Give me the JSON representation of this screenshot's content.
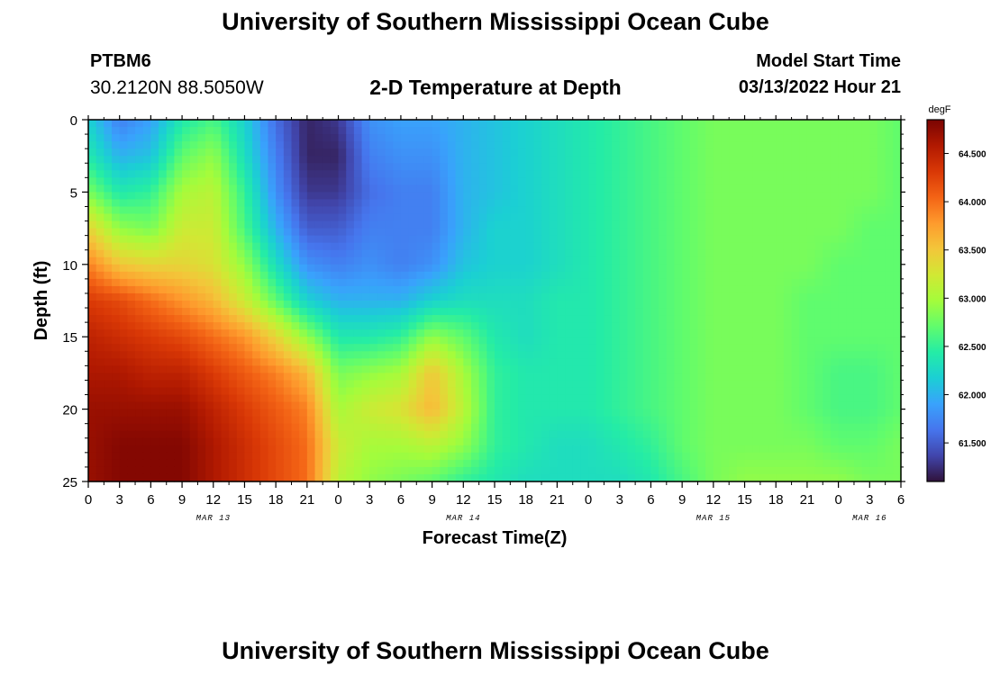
{
  "header": {
    "title": "University of Southern Mississippi Ocean Cube",
    "station_id": "PTBM6",
    "coordinates": "30.2120N  88.5050W",
    "subtitle": "2-D Temperature at Depth",
    "model_label": "Model Start Time",
    "model_time": "03/13/2022 Hour 21"
  },
  "footer": {
    "title": "University of Southern Mississippi Ocean Cube"
  },
  "chart_data": {
    "type": "heatmap",
    "title": "2-D Temperature at Depth",
    "xlabel": "Forecast Time(Z)",
    "ylabel": "Depth (ft)",
    "x_unit": "hours from MAR 13 00Z",
    "xlim": [
      0,
      78
    ],
    "ylim": [
      0,
      25
    ],
    "y_inverted": true,
    "x_tick_labels": [
      "0",
      "3",
      "6",
      "9",
      "12",
      "15",
      "18",
      "21",
      "0",
      "3",
      "6",
      "9",
      "12",
      "15",
      "18",
      "21",
      "0",
      "3",
      "6",
      "9",
      "12",
      "15",
      "18",
      "21",
      "0",
      "3",
      "6"
    ],
    "y_tick_labels": [
      "0",
      "5",
      "10",
      "15",
      "20",
      "25"
    ],
    "date_labels": [
      {
        "text": "MAR 13",
        "hour": 12
      },
      {
        "text": "MAR 14",
        "hour": 36
      },
      {
        "text": "MAR 15",
        "hour": 60
      },
      {
        "text": "MAR 16",
        "hour": 75
      }
    ],
    "colorbar": {
      "unit": "degF",
      "min": 61.1,
      "max": 64.85,
      "tick_labels": [
        "64.500",
        "64.000",
        "63.500",
        "63.000",
        "62.500",
        "62.000",
        "61.500"
      ],
      "colors": [
        "#30123b",
        "#4145ab",
        "#4675ed",
        "#39a2fc",
        "#1bcfd4",
        "#24eca6",
        "#61fc6c",
        "#a4fc3b",
        "#d1e834",
        "#f3c63a",
        "#fe9b2d",
        "#f36315",
        "#d93806",
        "#b11901",
        "#7a0402"
      ]
    },
    "depths_ft": [
      0,
      2.5,
      5,
      7.5,
      10,
      12.5,
      15,
      17.5,
      20,
      22.5,
      25
    ],
    "times_hr": [
      0,
      3,
      6,
      9,
      12,
      15,
      18,
      21,
      24,
      27,
      30,
      33,
      36,
      39,
      42,
      45,
      48,
      51,
      54,
      57,
      60,
      63,
      66,
      69,
      72,
      75,
      78
    ],
    "values_degF": [
      [
        62.2,
        61.7,
        61.9,
        62.4,
        62.6,
        62.2,
        61.6,
        61.2,
        61.3,
        61.8,
        61.9,
        61.9,
        62.0,
        62.1,
        62.2,
        62.3,
        62.4,
        62.5,
        62.6,
        62.7,
        62.8,
        62.8,
        62.8,
        62.8,
        62.8,
        62.8,
        62.7
      ],
      [
        62.4,
        62.0,
        62.1,
        62.7,
        62.9,
        62.3,
        61.7,
        61.2,
        61.2,
        61.7,
        61.8,
        61.8,
        62.0,
        62.1,
        62.2,
        62.3,
        62.4,
        62.5,
        62.6,
        62.7,
        62.8,
        62.8,
        62.8,
        62.8,
        62.8,
        62.8,
        62.7
      ],
      [
        62.8,
        62.4,
        62.5,
        63.0,
        63.1,
        62.5,
        61.8,
        61.3,
        61.3,
        61.6,
        61.7,
        61.7,
        62.0,
        62.1,
        62.2,
        62.3,
        62.4,
        62.5,
        62.6,
        62.7,
        62.8,
        62.8,
        62.8,
        62.8,
        62.8,
        62.8,
        62.7
      ],
      [
        63.4,
        62.9,
        62.8,
        63.2,
        63.2,
        62.6,
        62.0,
        61.5,
        61.5,
        61.7,
        61.7,
        61.7,
        62.0,
        62.2,
        62.2,
        62.3,
        62.4,
        62.5,
        62.6,
        62.7,
        62.8,
        62.8,
        62.8,
        62.8,
        62.8,
        62.7,
        62.7
      ],
      [
        63.9,
        63.5,
        63.4,
        63.4,
        63.3,
        62.9,
        62.3,
        61.8,
        61.7,
        61.8,
        61.7,
        61.8,
        62.1,
        62.2,
        62.2,
        62.3,
        62.4,
        62.5,
        62.6,
        62.7,
        62.8,
        62.8,
        62.8,
        62.8,
        62.7,
        62.7,
        62.7
      ],
      [
        64.3,
        64.2,
        64.0,
        63.8,
        63.6,
        63.2,
        62.7,
        62.2,
        62.0,
        62.0,
        62.0,
        62.2,
        62.3,
        62.3,
        62.3,
        62.4,
        62.4,
        62.5,
        62.6,
        62.7,
        62.8,
        62.8,
        62.8,
        62.7,
        62.7,
        62.7,
        62.7
      ],
      [
        64.5,
        64.4,
        64.3,
        64.2,
        64.0,
        63.8,
        63.4,
        62.9,
        62.4,
        62.4,
        62.5,
        62.9,
        62.7,
        62.4,
        62.3,
        62.4,
        62.4,
        62.5,
        62.6,
        62.7,
        62.8,
        62.8,
        62.8,
        62.7,
        62.7,
        62.7,
        62.7
      ],
      [
        64.6,
        64.6,
        64.5,
        64.5,
        64.3,
        64.1,
        63.9,
        63.6,
        62.8,
        62.9,
        63.0,
        63.5,
        63.0,
        62.5,
        62.4,
        62.4,
        62.4,
        62.5,
        62.6,
        62.7,
        62.8,
        62.8,
        62.8,
        62.7,
        62.6,
        62.6,
        62.7
      ],
      [
        64.7,
        64.7,
        64.7,
        64.7,
        64.5,
        64.3,
        64.1,
        63.9,
        63.0,
        63.2,
        63.3,
        63.6,
        63.1,
        62.5,
        62.4,
        62.4,
        62.4,
        62.5,
        62.6,
        62.7,
        62.8,
        62.8,
        62.8,
        62.7,
        62.6,
        62.6,
        62.7
      ],
      [
        64.7,
        64.8,
        64.8,
        64.8,
        64.6,
        64.4,
        64.2,
        64.0,
        63.2,
        63.0,
        63.0,
        63.1,
        62.9,
        62.5,
        62.4,
        62.3,
        62.3,
        62.4,
        62.5,
        62.7,
        62.8,
        62.8,
        62.8,
        62.8,
        62.7,
        62.7,
        62.8
      ],
      [
        64.7,
        64.8,
        64.8,
        64.8,
        64.6,
        64.4,
        64.2,
        64.0,
        63.1,
        62.9,
        62.8,
        62.7,
        62.5,
        62.4,
        62.3,
        62.3,
        62.3,
        62.3,
        62.4,
        62.6,
        62.8,
        62.9,
        62.9,
        62.9,
        62.9,
        62.8,
        62.8
      ]
    ]
  }
}
